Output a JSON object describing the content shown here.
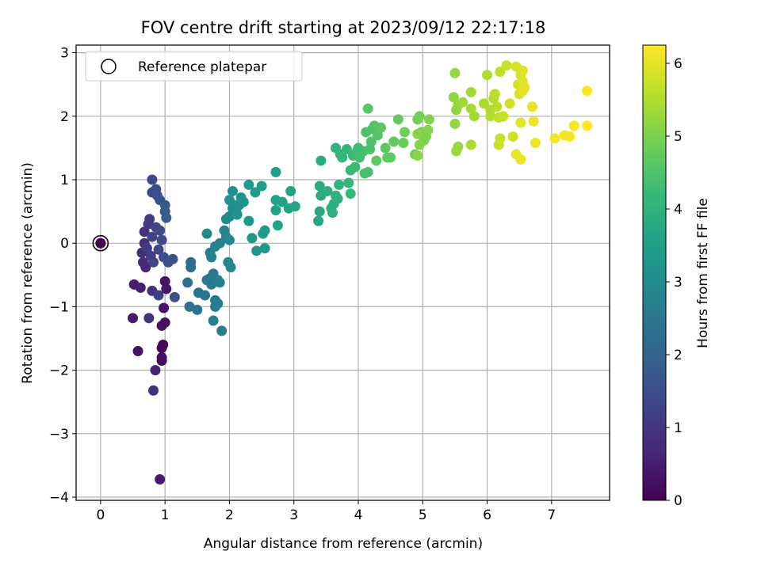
{
  "chart_data": {
    "type": "scatter",
    "title": "FOV centre drift starting at 2023/09/12 22:17:18",
    "xlabel": "Angular distance from reference (arcmin)",
    "ylabel": "Rotation from reference (arcmin)",
    "xlim": [
      -0.38,
      7.9
    ],
    "ylim": [
      -4.05,
      3.12
    ],
    "xticks": [
      0,
      1,
      2,
      3,
      4,
      5,
      6,
      7
    ],
    "yticks": [
      -4,
      -3,
      -2,
      -1,
      0,
      1,
      2,
      3
    ],
    "xtick_labels": [
      "0",
      "1",
      "2",
      "3",
      "4",
      "5",
      "6",
      "7"
    ],
    "ytick_labels": [
      "−4",
      "−3",
      "−2",
      "−1",
      "0",
      "1",
      "2",
      "3"
    ],
    "grid": true,
    "legend": {
      "position": "top-left",
      "entries": [
        "Reference platepar"
      ]
    },
    "reference_point": {
      "x": 0,
      "y": 0,
      "label": "Reference platepar"
    },
    "colorbar": {
      "label": "Hours from first FF file",
      "colormap": "viridis",
      "range": [
        0,
        6.25
      ],
      "ticks": [
        0,
        1,
        2,
        3,
        4,
        5,
        6
      ],
      "tick_labels": [
        "0",
        "1",
        "2",
        "3",
        "4",
        "5",
        "6"
      ]
    },
    "colors": {
      "viridis": [
        "#440154",
        "#482878",
        "#3e4989",
        "#31688e",
        "#26828e",
        "#1f9e89",
        "#35b779",
        "#6ece58",
        "#b5de2b",
        "#fde725"
      ],
      "grid": "#b0b0b0",
      "reference_edge": "#000000"
    },
    "points": [
      [
        0.0,
        0.0,
        0.0
      ],
      [
        0.92,
        -3.72,
        0.45
      ],
      [
        0.82,
        -2.32,
        0.9
      ],
      [
        0.85,
        -2.0,
        0.6
      ],
      [
        0.58,
        -1.7,
        0.3
      ],
      [
        0.95,
        -1.85,
        0.2
      ],
      [
        0.95,
        -1.8,
        0.25
      ],
      [
        0.95,
        -1.65,
        0.15
      ],
      [
        0.97,
        -1.6,
        0.1
      ],
      [
        0.5,
        -1.18,
        0.45
      ],
      [
        0.75,
        -1.18,
        0.95
      ],
      [
        0.95,
        -1.3,
        0.3
      ],
      [
        1.0,
        -1.25,
        0.25
      ],
      [
        0.98,
        -1.02,
        0.35
      ],
      [
        0.52,
        -0.65,
        0.5
      ],
      [
        0.62,
        -0.7,
        0.55
      ],
      [
        0.8,
        -0.75,
        0.9
      ],
      [
        0.9,
        -0.82,
        1.15
      ],
      [
        1.0,
        -0.6,
        0.35
      ],
      [
        1.02,
        -0.72,
        0.4
      ],
      [
        0.7,
        -0.38,
        0.65
      ],
      [
        0.66,
        -0.3,
        0.75
      ],
      [
        0.64,
        -0.15,
        0.8
      ],
      [
        0.68,
        0.0,
        0.85
      ],
      [
        0.68,
        0.18,
        0.9
      ],
      [
        0.74,
        0.3,
        1.0
      ],
      [
        0.76,
        0.38,
        1.05
      ],
      [
        0.72,
        -0.08,
        1.1
      ],
      [
        0.78,
        -0.2,
        1.2
      ],
      [
        0.8,
        0.1,
        1.25
      ],
      [
        0.82,
        -0.3,
        1.3
      ],
      [
        0.86,
        0.25,
        1.3
      ],
      [
        0.9,
        -0.1,
        1.35
      ],
      [
        0.92,
        0.2,
        1.4
      ],
      [
        0.95,
        0.05,
        1.4
      ],
      [
        0.98,
        -0.22,
        1.45
      ],
      [
        1.05,
        -0.3,
        1.5
      ],
      [
        1.12,
        -0.25,
        1.55
      ],
      [
        1.15,
        -0.85,
        1.6
      ],
      [
        0.8,
        0.8,
        1.3
      ],
      [
        0.8,
        1.0,
        1.4
      ],
      [
        0.86,
        0.85,
        1.5
      ],
      [
        0.88,
        0.75,
        1.55
      ],
      [
        0.92,
        0.68,
        1.6
      ],
      [
        1.0,
        0.6,
        1.7
      ],
      [
        1.0,
        0.5,
        1.75
      ],
      [
        1.02,
        0.4,
        1.85
      ],
      [
        1.4,
        -0.3,
        2.2
      ],
      [
        1.4,
        -0.38,
        2.25
      ],
      [
        1.35,
        -0.62,
        2.25
      ],
      [
        1.38,
        -1.0,
        2.3
      ],
      [
        1.5,
        -1.05,
        2.35
      ],
      [
        1.52,
        -0.78,
        2.4
      ],
      [
        1.62,
        -0.82,
        2.45
      ],
      [
        1.65,
        -0.58,
        2.5
      ],
      [
        1.7,
        -0.55,
        2.5
      ],
      [
        1.72,
        -0.65,
        2.55
      ],
      [
        1.75,
        -0.48,
        2.55
      ],
      [
        1.78,
        -0.9,
        2.6
      ],
      [
        1.82,
        -0.95,
        2.6
      ],
      [
        1.78,
        -1.0,
        2.6
      ],
      [
        1.75,
        -1.22,
        2.65
      ],
      [
        1.88,
        -1.38,
        2.65
      ],
      [
        1.82,
        -0.58,
        2.7
      ],
      [
        1.85,
        -0.62,
        2.7
      ],
      [
        1.7,
        -0.15,
        2.7
      ],
      [
        1.72,
        -0.22,
        2.75
      ],
      [
        1.78,
        -0.05,
        2.8
      ],
      [
        1.85,
        0.0,
        2.8
      ],
      [
        1.92,
        0.2,
        2.85
      ],
      [
        1.95,
        0.1,
        2.85
      ],
      [
        1.98,
        -0.3,
        2.9
      ],
      [
        2.02,
        -0.38,
        2.9
      ],
      [
        2.0,
        0.05,
        2.95
      ],
      [
        1.65,
        0.15,
        2.95
      ],
      [
        1.95,
        0.38,
        3.0
      ],
      [
        2.0,
        0.42,
        3.0
      ],
      [
        2.05,
        0.55,
        3.05
      ],
      [
        2.08,
        0.6,
        3.05
      ],
      [
        2.05,
        0.82,
        3.1
      ],
      [
        2.1,
        0.5,
        3.1
      ],
      [
        2.15,
        0.6,
        3.15
      ],
      [
        2.18,
        0.72,
        3.15
      ],
      [
        2.22,
        0.65,
        3.2
      ],
      [
        2.0,
        0.68,
        3.2
      ],
      [
        2.12,
        0.45,
        3.25
      ],
      [
        2.3,
        0.35,
        3.3
      ],
      [
        2.35,
        0.08,
        3.3
      ],
      [
        2.42,
        -0.12,
        3.35
      ],
      [
        2.55,
        -0.08,
        3.35
      ],
      [
        2.55,
        0.2,
        3.4
      ],
      [
        2.52,
        0.15,
        3.4
      ],
      [
        2.3,
        0.92,
        3.45
      ],
      [
        2.4,
        0.8,
        3.45
      ],
      [
        2.5,
        0.9,
        3.5
      ],
      [
        2.72,
        1.12,
        3.5
      ],
      [
        2.72,
        0.68,
        3.55
      ],
      [
        2.72,
        0.52,
        3.55
      ],
      [
        2.75,
        0.28,
        3.6
      ],
      [
        2.82,
        0.65,
        3.6
      ],
      [
        2.95,
        0.82,
        3.65
      ],
      [
        2.92,
        0.55,
        3.65
      ],
      [
        3.02,
        0.58,
        3.7
      ],
      [
        3.38,
        0.35,
        3.7
      ],
      [
        3.4,
        0.5,
        3.75
      ],
      [
        3.42,
        0.75,
        3.8
      ],
      [
        3.4,
        0.9,
        3.85
      ],
      [
        3.42,
        1.3,
        3.85
      ],
      [
        3.52,
        0.82,
        3.9
      ],
      [
        3.58,
        0.55,
        3.9
      ],
      [
        3.6,
        0.48,
        3.95
      ],
      [
        3.62,
        0.62,
        3.95
      ],
      [
        3.65,
        0.75,
        4.0
      ],
      [
        3.68,
        0.7,
        4.0
      ],
      [
        3.7,
        0.92,
        4.05
      ],
      [
        3.65,
        1.5,
        4.05
      ],
      [
        3.72,
        1.4,
        4.1
      ],
      [
        3.75,
        1.35,
        4.1
      ],
      [
        3.82,
        1.48,
        4.15
      ],
      [
        3.85,
        0.95,
        4.15
      ],
      [
        3.88,
        0.78,
        4.2
      ],
      [
        3.88,
        1.15,
        4.2
      ],
      [
        3.92,
        1.38,
        4.25
      ],
      [
        3.95,
        1.2,
        4.25
      ],
      [
        3.98,
        1.45,
        4.3
      ],
      [
        4.0,
        1.5,
        4.3
      ],
      [
        4.02,
        1.35,
        4.35
      ],
      [
        4.08,
        1.45,
        4.35
      ],
      [
        4.1,
        1.1,
        4.4
      ],
      [
        4.15,
        1.12,
        4.4
      ],
      [
        4.12,
        1.75,
        4.45
      ],
      [
        4.18,
        1.48,
        4.45
      ],
      [
        4.2,
        1.6,
        4.5
      ],
      [
        4.22,
        1.8,
        4.5
      ],
      [
        4.25,
        1.85,
        4.55
      ],
      [
        4.3,
        1.7,
        4.55
      ],
      [
        4.35,
        1.82,
        4.6
      ],
      [
        4.15,
        2.12,
        4.6
      ],
      [
        4.28,
        1.3,
        4.65
      ],
      [
        4.42,
        1.5,
        4.65
      ],
      [
        4.45,
        1.35,
        4.7
      ],
      [
        4.5,
        1.35,
        4.7
      ],
      [
        4.55,
        1.6,
        4.75
      ],
      [
        4.62,
        1.95,
        4.75
      ],
      [
        4.7,
        1.58,
        4.8
      ],
      [
        4.72,
        1.75,
        4.85
      ],
      [
        4.88,
        1.4,
        4.85
      ],
      [
        4.92,
        1.95,
        4.9
      ],
      [
        4.95,
        2.0,
        4.9
      ],
      [
        4.98,
        1.75,
        4.95
      ],
      [
        5.02,
        1.62,
        5.0
      ],
      [
        5.05,
        1.68,
        5.0
      ],
      [
        5.08,
        1.78,
        5.05
      ],
      [
        5.1,
        1.95,
        5.05
      ],
      [
        4.92,
        1.72,
        5.1
      ],
      [
        4.95,
        1.55,
        5.1
      ],
      [
        4.92,
        1.38,
        5.15
      ],
      [
        5.48,
        2.3,
        5.15
      ],
      [
        5.5,
        1.88,
        5.2
      ],
      [
        5.52,
        2.1,
        5.2
      ],
      [
        5.55,
        2.18,
        5.25
      ],
      [
        5.5,
        2.68,
        5.25
      ],
      [
        5.52,
        1.45,
        5.3
      ],
      [
        5.55,
        1.52,
        5.3
      ],
      [
        5.62,
        2.22,
        5.35
      ],
      [
        5.75,
        2.38,
        5.35
      ],
      [
        5.75,
        2.12,
        5.4
      ],
      [
        5.8,
        2.0,
        5.4
      ],
      [
        5.75,
        1.55,
        5.45
      ],
      [
        5.95,
        2.2,
        5.45
      ],
      [
        6.0,
        2.65,
        5.5
      ],
      [
        6.05,
        2.1,
        5.5
      ],
      [
        6.05,
        2.0,
        5.55
      ],
      [
        6.1,
        2.28,
        5.55
      ],
      [
        6.12,
        2.35,
        5.6
      ],
      [
        6.15,
        2.15,
        5.6
      ],
      [
        6.18,
        1.98,
        5.65
      ],
      [
        6.2,
        2.7,
        5.65
      ],
      [
        6.25,
        2.0,
        5.7
      ],
      [
        6.18,
        1.55,
        5.7
      ],
      [
        6.2,
        1.65,
        5.75
      ],
      [
        6.3,
        2.8,
        5.75
      ],
      [
        6.35,
        2.2,
        5.8
      ],
      [
        6.4,
        1.68,
        5.8
      ],
      [
        6.45,
        2.78,
        5.85
      ],
      [
        6.48,
        2.5,
        5.85
      ],
      [
        6.5,
        2.35,
        5.9
      ],
      [
        6.52,
        2.65,
        5.9
      ],
      [
        6.55,
        2.72,
        5.95
      ],
      [
        6.55,
        2.55,
        5.95
      ],
      [
        6.52,
        1.9,
        6.0
      ],
      [
        6.55,
        2.4,
        6.0
      ],
      [
        6.58,
        2.45,
        6.0
      ],
      [
        6.45,
        1.4,
        6.05
      ],
      [
        6.52,
        1.32,
        6.05
      ],
      [
        6.7,
        2.15,
        6.05
      ],
      [
        6.72,
        1.92,
        6.1
      ],
      [
        6.75,
        1.58,
        6.1
      ],
      [
        7.05,
        1.65,
        6.15
      ],
      [
        7.2,
        1.7,
        6.15
      ],
      [
        7.28,
        1.68,
        6.2
      ],
      [
        7.35,
        1.85,
        6.2
      ],
      [
        7.55,
        2.4,
        6.25
      ],
      [
        7.55,
        1.85,
        6.25
      ]
    ]
  }
}
